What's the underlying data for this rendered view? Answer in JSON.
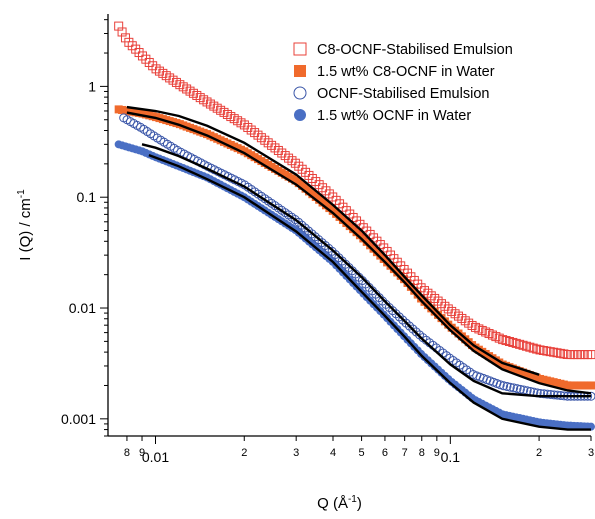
{
  "chart_data": {
    "type": "scatter",
    "xlabel": "Q (Å",
    "xlabel_sup": "-1",
    "xlabel_end": ")",
    "ylabel": "I (Q) / cm",
    "ylabel_sup": "-1",
    "x_scale": "log",
    "y_scale": "log",
    "xlim": [
      0.0069,
      0.3
    ],
    "ylim": [
      0.0007,
      4.5
    ],
    "grid": false,
    "legend_position": "top-right",
    "x_ticks": [
      {
        "value": 0.008,
        "label": "8",
        "major": false
      },
      {
        "value": 0.009,
        "label": "9",
        "major": false
      },
      {
        "value": 0.01,
        "label": "0.01",
        "major": true
      },
      {
        "value": 0.02,
        "label": "2",
        "major": false
      },
      {
        "value": 0.03,
        "label": "3",
        "major": false
      },
      {
        "value": 0.04,
        "label": "4",
        "major": false
      },
      {
        "value": 0.05,
        "label": "5",
        "major": false
      },
      {
        "value": 0.06,
        "label": "6",
        "major": false
      },
      {
        "value": 0.07,
        "label": "7",
        "major": false
      },
      {
        "value": 0.08,
        "label": "8",
        "major": false
      },
      {
        "value": 0.09,
        "label": "9",
        "major": false
      },
      {
        "value": 0.1,
        "label": "0.1",
        "major": true
      },
      {
        "value": 0.2,
        "label": "2",
        "major": false
      },
      {
        "value": 0.3,
        "label": "3",
        "major": false
      }
    ],
    "y_ticks": [
      {
        "value": 0.001,
        "label": "0.001"
      },
      {
        "value": 0.01,
        "label": "0.01"
      },
      {
        "value": 0.1,
        "label": "0.1"
      },
      {
        "value": 1,
        "label": "1"
      }
    ],
    "series": [
      {
        "name": "C8-OCNF-Stabilised Emulsion",
        "marker": "open-square",
        "color": "#e8403a",
        "points": [
          [
            0.0075,
            3.5
          ],
          [
            0.008,
            2.6
          ],
          [
            0.009,
            1.9
          ],
          [
            0.01,
            1.45
          ],
          [
            0.012,
            1.05
          ],
          [
            0.015,
            0.72
          ],
          [
            0.02,
            0.45
          ],
          [
            0.03,
            0.2
          ],
          [
            0.04,
            0.1
          ],
          [
            0.05,
            0.055
          ],
          [
            0.06,
            0.034
          ],
          [
            0.07,
            0.022
          ],
          [
            0.08,
            0.015
          ],
          [
            0.1,
            0.0095
          ],
          [
            0.12,
            0.0068
          ],
          [
            0.15,
            0.0052
          ],
          [
            0.2,
            0.0042
          ],
          [
            0.25,
            0.0038
          ],
          [
            0.3,
            0.0038
          ]
        ]
      },
      {
        "name": "1.5 wt% C8-OCNF in Water",
        "marker": "filled-square",
        "color": "#f06a2c",
        "points": [
          [
            0.0075,
            0.62
          ],
          [
            0.009,
            0.57
          ],
          [
            0.01,
            0.53
          ],
          [
            0.012,
            0.46
          ],
          [
            0.015,
            0.37
          ],
          [
            0.02,
            0.26
          ],
          [
            0.03,
            0.14
          ],
          [
            0.04,
            0.075
          ],
          [
            0.05,
            0.044
          ],
          [
            0.06,
            0.027
          ],
          [
            0.07,
            0.018
          ],
          [
            0.08,
            0.012
          ],
          [
            0.1,
            0.0068
          ],
          [
            0.12,
            0.0045
          ],
          [
            0.15,
            0.0031
          ],
          [
            0.2,
            0.0023
          ],
          [
            0.25,
            0.002
          ],
          [
            0.3,
            0.002
          ]
        ]
      },
      {
        "name": "OCNF-Stabilised Emulsion",
        "marker": "open-circle",
        "color": "#3a56a8",
        "points": [
          [
            0.0078,
            0.52
          ],
          [
            0.009,
            0.42
          ],
          [
            0.01,
            0.35
          ],
          [
            0.012,
            0.26
          ],
          [
            0.015,
            0.19
          ],
          [
            0.02,
            0.13
          ],
          [
            0.03,
            0.062
          ],
          [
            0.04,
            0.032
          ],
          [
            0.05,
            0.018
          ],
          [
            0.06,
            0.011
          ],
          [
            0.07,
            0.0075
          ],
          [
            0.08,
            0.0055
          ],
          [
            0.1,
            0.0035
          ],
          [
            0.12,
            0.0025
          ],
          [
            0.15,
            0.002
          ],
          [
            0.2,
            0.0017
          ],
          [
            0.25,
            0.0016
          ],
          [
            0.3,
            0.0016
          ]
        ]
      },
      {
        "name": "1.5 wt% OCNF in Water",
        "marker": "filled-circle",
        "color": "#4a6fc4",
        "points": [
          [
            0.0075,
            0.3
          ],
          [
            0.009,
            0.26
          ],
          [
            0.01,
            0.23
          ],
          [
            0.012,
            0.19
          ],
          [
            0.015,
            0.15
          ],
          [
            0.02,
            0.1
          ],
          [
            0.03,
            0.05
          ],
          [
            0.04,
            0.026
          ],
          [
            0.05,
            0.014
          ],
          [
            0.06,
            0.0085
          ],
          [
            0.07,
            0.0055
          ],
          [
            0.08,
            0.0038
          ],
          [
            0.1,
            0.0022
          ],
          [
            0.12,
            0.0015
          ],
          [
            0.15,
            0.0011
          ],
          [
            0.2,
            0.00093
          ],
          [
            0.25,
            0.00087
          ],
          [
            0.3,
            0.00085
          ]
        ]
      }
    ],
    "fit_lines": [
      {
        "color": "#000000",
        "points": [
          [
            0.008,
            0.65
          ],
          [
            0.01,
            0.6
          ],
          [
            0.012,
            0.54
          ],
          [
            0.015,
            0.44
          ],
          [
            0.02,
            0.31
          ],
          [
            0.03,
            0.16
          ],
          [
            0.04,
            0.085
          ],
          [
            0.05,
            0.05
          ],
          [
            0.06,
            0.03
          ],
          [
            0.07,
            0.019
          ],
          [
            0.08,
            0.013
          ],
          [
            0.1,
            0.007
          ],
          [
            0.12,
            0.0046
          ],
          [
            0.15,
            0.0032
          ],
          [
            0.2,
            0.0025
          ]
        ]
      },
      {
        "color": "#000000",
        "points": [
          [
            0.008,
            0.58
          ],
          [
            0.01,
            0.52
          ],
          [
            0.012,
            0.45
          ],
          [
            0.015,
            0.36
          ],
          [
            0.02,
            0.25
          ],
          [
            0.03,
            0.13
          ],
          [
            0.04,
            0.072
          ],
          [
            0.05,
            0.042
          ],
          [
            0.06,
            0.026
          ],
          [
            0.07,
            0.017
          ],
          [
            0.08,
            0.0115
          ],
          [
            0.1,
            0.0063
          ],
          [
            0.12,
            0.0041
          ],
          [
            0.15,
            0.0028
          ],
          [
            0.2,
            0.0021
          ],
          [
            0.25,
            0.0018
          ],
          [
            0.3,
            0.0017
          ]
        ]
      },
      {
        "color": "#000000",
        "points": [
          [
            0.009,
            0.3
          ],
          [
            0.01,
            0.28
          ],
          [
            0.012,
            0.235
          ],
          [
            0.015,
            0.18
          ],
          [
            0.02,
            0.125
          ],
          [
            0.03,
            0.062
          ],
          [
            0.04,
            0.033
          ],
          [
            0.05,
            0.019
          ],
          [
            0.06,
            0.0115
          ],
          [
            0.07,
            0.0076
          ],
          [
            0.08,
            0.0053
          ],
          [
            0.1,
            0.0031
          ],
          [
            0.12,
            0.0022
          ],
          [
            0.15,
            0.0017
          ],
          [
            0.2,
            0.0016
          ],
          [
            0.25,
            0.0016
          ],
          [
            0.3,
            0.0016
          ]
        ]
      },
      {
        "color": "#000000",
        "points": [
          [
            0.0095,
            0.24
          ],
          [
            0.012,
            0.19
          ],
          [
            0.015,
            0.145
          ],
          [
            0.02,
            0.1
          ],
          [
            0.03,
            0.049
          ],
          [
            0.04,
            0.026
          ],
          [
            0.05,
            0.014
          ],
          [
            0.06,
            0.0085
          ],
          [
            0.07,
            0.0055
          ],
          [
            0.08,
            0.0037
          ],
          [
            0.1,
            0.0021
          ],
          [
            0.12,
            0.0014
          ],
          [
            0.15,
            0.001
          ],
          [
            0.2,
            0.00085
          ],
          [
            0.25,
            0.0008
          ],
          [
            0.3,
            0.0008
          ]
        ]
      }
    ]
  }
}
